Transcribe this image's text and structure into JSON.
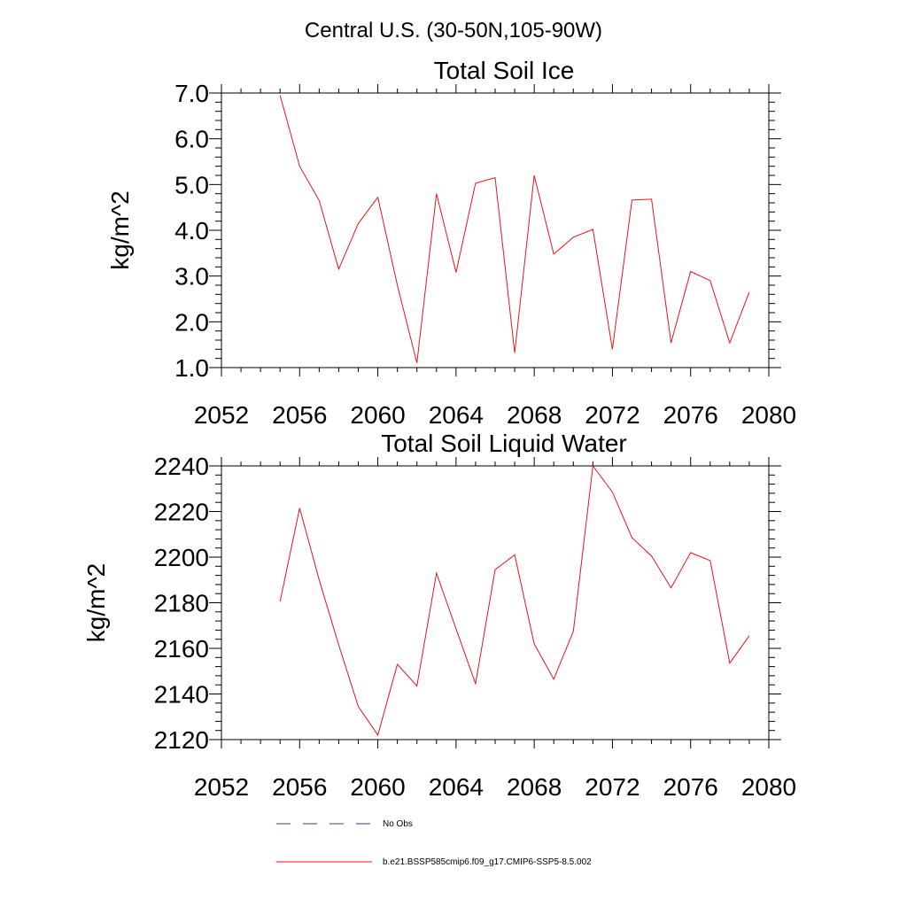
{
  "figure": {
    "title": "Central U.S. (30-50N,105-90W)"
  },
  "chart_data": [
    {
      "type": "line",
      "title": "Total Soil Ice",
      "ylabel": "kg/m^2",
      "xlabel": "",
      "xlim": [
        2052,
        2080
      ],
      "ylim": [
        1.0,
        7.0
      ],
      "x_ticks": [
        2052,
        2056,
        2060,
        2064,
        2068,
        2072,
        2076,
        2080
      ],
      "y_ticks": [
        1.0,
        2.0,
        3.0,
        4.0,
        5.0,
        6.0,
        7.0
      ],
      "y_tick_labels": [
        "1.0",
        "2.0",
        "3.0",
        "4.0",
        "5.0",
        "6.0",
        "7.0"
      ],
      "grid": false,
      "series": [
        {
          "name": "b.e21.BSSP585cmip6.f09_g17.CMIP6-SSP5-8.5.002",
          "color": "#e8141c",
          "x": [
            2055,
            2056,
            2057,
            2058,
            2059,
            2060,
            2061,
            2062,
            2063,
            2064,
            2065,
            2066,
            2067,
            2068,
            2069,
            2070,
            2071,
            2072,
            2073,
            2074,
            2075,
            2076,
            2077,
            2078,
            2079
          ],
          "y": [
            6.95,
            5.4,
            4.65,
            3.15,
            4.15,
            4.72,
            2.8,
            1.1,
            4.8,
            3.08,
            5.03,
            5.15,
            1.32,
            5.2,
            3.48,
            3.85,
            4.02,
            1.4,
            4.66,
            4.68,
            1.54,
            3.1,
            2.9,
            1.54,
            2.65
          ]
        }
      ]
    },
    {
      "type": "line",
      "title": "Total Soil Liquid Water",
      "ylabel": "kg/m^2",
      "xlabel": "",
      "xlim": [
        2052,
        2080
      ],
      "ylim": [
        2120,
        2240
      ],
      "x_ticks": [
        2052,
        2056,
        2060,
        2064,
        2068,
        2072,
        2076,
        2080
      ],
      "y_ticks": [
        2120,
        2140,
        2160,
        2180,
        2200,
        2220,
        2240
      ],
      "y_tick_labels": [
        "2120",
        "2140",
        "2160",
        "2180",
        "2200",
        "2220",
        "2240"
      ],
      "grid": false,
      "series": [
        {
          "name": "b.e21.BSSP585cmip6.f09_g17.CMIP6-SSP5-8.5.002",
          "color": "#e8141c",
          "x": [
            2055,
            2056,
            2057,
            2058,
            2059,
            2060,
            2061,
            2062,
            2063,
            2064,
            2065,
            2066,
            2067,
            2068,
            2069,
            2070,
            2071,
            2072,
            2073,
            2074,
            2075,
            2076,
            2077,
            2078,
            2079
          ],
          "y": [
            2180.5,
            2221.5,
            2190.0,
            2161.5,
            2134.5,
            2122.0,
            2153.0,
            2143.5,
            2193.0,
            2168.5,
            2144.5,
            2194.5,
            2201.0,
            2162.0,
            2146.5,
            2167.5,
            2240.0,
            2228.5,
            2208.5,
            2200.5,
            2186.5,
            2202.0,
            2198.5,
            2153.5,
            2165.5
          ]
        }
      ]
    }
  ],
  "legend": {
    "entries": [
      {
        "label": "No Obs",
        "color": "#3a3a8c",
        "style": "dashed"
      },
      {
        "label": "b.e21.BSSP585cmip6.f09_g17.CMIP6-SSP5-8.5.002",
        "color": "#e8141c",
        "style": "solid"
      }
    ]
  }
}
